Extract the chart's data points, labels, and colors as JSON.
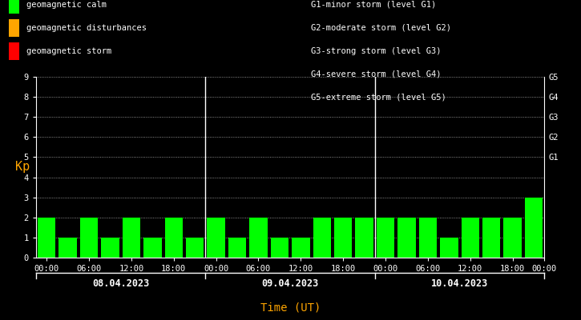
{
  "bg_color": "#000000",
  "text_color": "#ffffff",
  "orange_color": "#ffa500",
  "ylabel": "Kp",
  "xlabel": "Time (UT)",
  "ylim": [
    0,
    9
  ],
  "yticks": [
    0,
    1,
    2,
    3,
    4,
    5,
    6,
    7,
    8,
    9
  ],
  "days": [
    "08.04.2023",
    "09.04.2023",
    "10.04.2023"
  ],
  "kp_values": [
    [
      2,
      1,
      2,
      1,
      2,
      1,
      2,
      1
    ],
    [
      2,
      1,
      2,
      1,
      1,
      2,
      2,
      2
    ],
    [
      2,
      2,
      2,
      1,
      2,
      2,
      2,
      3
    ]
  ],
  "legend_items": [
    {
      "label": "geomagnetic calm",
      "color": "#00ff00"
    },
    {
      "label": "geomagnetic disturbances",
      "color": "#ffa500"
    },
    {
      "label": "geomagnetic storm",
      "color": "#ff0000"
    }
  ],
  "g_labels": [
    "G1-minor storm (level G1)",
    "G2-moderate storm (level G2)",
    "G3-strong storm (level G3)",
    "G4-severe storm (level G4)",
    "G5-extreme storm (level G5)"
  ],
  "font_size": 7.5,
  "bar_width": 0.85,
  "separator_color": "#ffffff",
  "figsize": [
    7.25,
    4.0
  ],
  "dpi": 100
}
